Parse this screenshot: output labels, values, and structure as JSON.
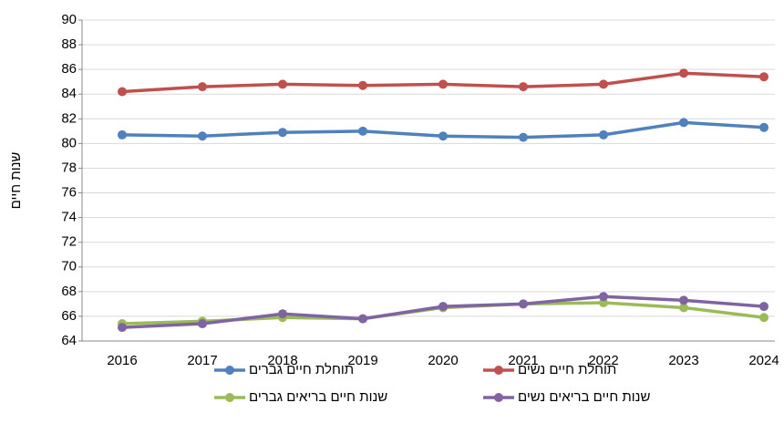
{
  "chart_data": {
    "type": "line",
    "y_label": "שנות חיים",
    "categories": [
      "2016",
      "2017",
      "2018",
      "2019",
      "2020",
      "2021",
      "2022",
      "2023",
      "2024"
    ],
    "series": [
      {
        "name": "תוחלת חיים גברים",
        "color": "#4f81bd",
        "values": [
          80.7,
          80.6,
          80.9,
          81.0,
          80.6,
          80.5,
          80.7,
          81.7,
          81.3
        ]
      },
      {
        "name": "תוחלת חיים נשים",
        "color": "#c0504d",
        "values": [
          84.2,
          84.6,
          84.8,
          84.7,
          84.8,
          84.6,
          84.8,
          85.7,
          85.4
        ]
      },
      {
        "name": "שנות חיים בריאים גברים",
        "color": "#9bbb59",
        "values": [
          65.4,
          65.6,
          65.9,
          65.8,
          66.7,
          67.0,
          67.1,
          66.7,
          65.9
        ]
      },
      {
        "name": "שנות חיים בריאים נשים",
        "color": "#8064a2",
        "values": [
          65.1,
          65.4,
          66.2,
          65.8,
          66.8,
          67.0,
          67.6,
          67.3,
          66.8
        ]
      }
    ],
    "ylim": [
      64,
      90
    ],
    "yticks": [
      64,
      66,
      68,
      70,
      72,
      74,
      76,
      78,
      80,
      82,
      84,
      86,
      88,
      90
    ],
    "grid": true,
    "legend": "bottom"
  }
}
